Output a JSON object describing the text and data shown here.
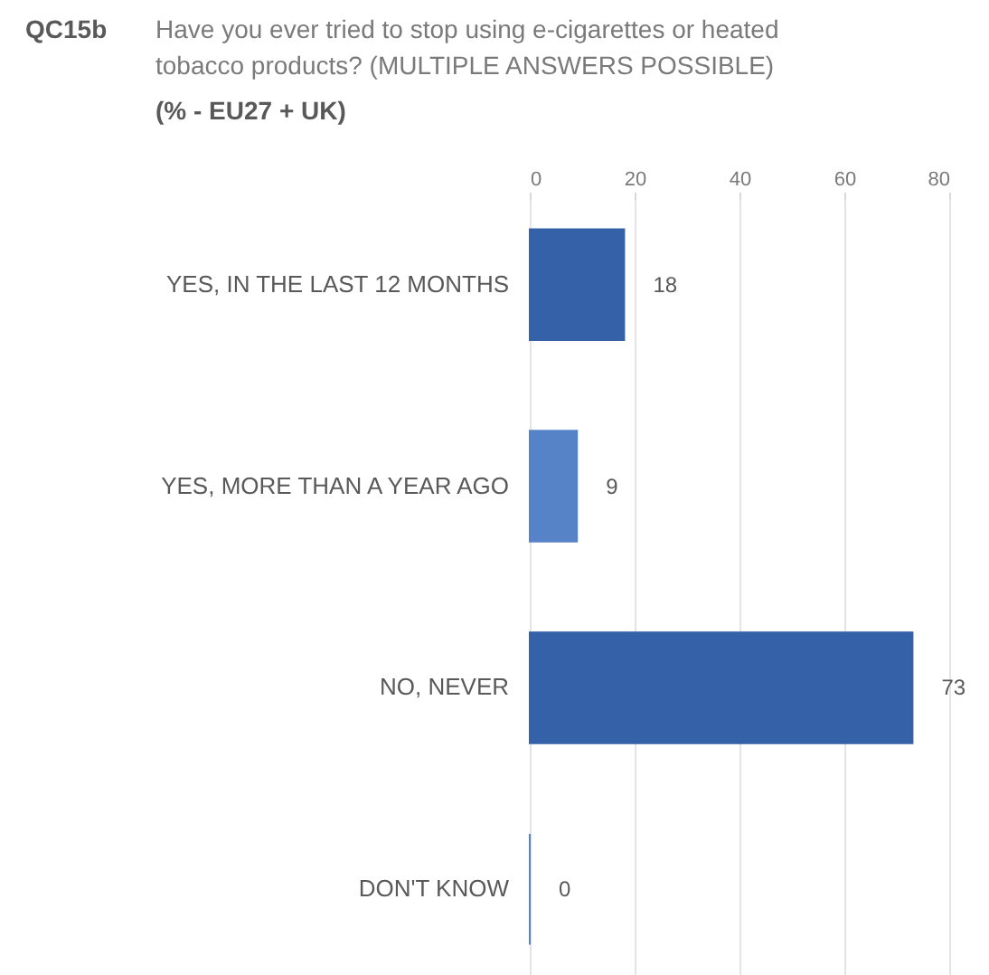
{
  "chart_data": {
    "type": "bar",
    "orientation": "horizontal",
    "title": "QC15b",
    "subtitle": "Have you ever tried to stop using e-cigarettes or heated tobacco products? (MULTIPLE ANSWERS POSSIBLE)",
    "annotations": [
      "(% - EU27 + UK)"
    ],
    "categories": [
      "YES, IN THE LAST 12 MONTHS",
      "YES, MORE THAN A YEAR AGO",
      "NO, NEVER",
      "DON'T KNOW"
    ],
    "values": [
      18,
      9,
      73,
      0
    ],
    "colors": [
      "#3561a8",
      "#5682c8",
      "#3561a8",
      "#5682c8"
    ],
    "xlim": [
      0,
      80
    ],
    "xticks": [
      0,
      20,
      40,
      60,
      80
    ],
    "grid": "x",
    "data_labels": true
  }
}
